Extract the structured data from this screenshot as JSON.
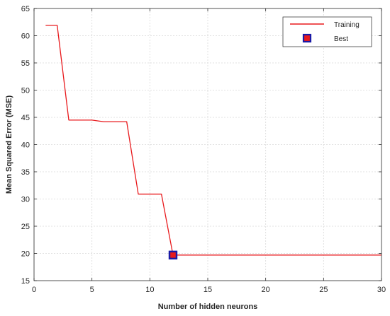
{
  "chart_data": {
    "type": "line",
    "title": "",
    "xlabel": "Number of hidden neurons",
    "ylabel": "Mean Squared Error (MSE)",
    "xlim": [
      0,
      30
    ],
    "ylim": [
      15,
      65
    ],
    "xticks": [
      0,
      5,
      10,
      15,
      20,
      25,
      30
    ],
    "yticks": [
      15,
      20,
      25,
      30,
      35,
      40,
      45,
      50,
      55,
      60,
      65
    ],
    "grid": true,
    "legend_position": "top-right",
    "series": [
      {
        "name": "Training",
        "color": "#e8191c",
        "x": [
          1,
          2,
          3,
          4,
          5,
          6,
          7,
          8,
          9,
          10,
          11,
          12,
          13,
          14,
          15,
          16,
          17,
          18,
          19,
          20,
          21,
          22,
          23,
          24,
          25,
          26,
          27,
          28,
          29,
          30
        ],
        "y": [
          61.9,
          61.9,
          44.5,
          44.5,
          44.5,
          44.2,
          44.2,
          44.2,
          30.9,
          30.9,
          30.9,
          19.7,
          19.7,
          19.7,
          19.7,
          19.7,
          19.7,
          19.7,
          19.7,
          19.7,
          19.7,
          19.7,
          19.7,
          19.7,
          19.7,
          19.7,
          19.7,
          19.7,
          19.7,
          19.7
        ]
      }
    ],
    "best": {
      "name": "Best",
      "x": 12,
      "y": 19.7,
      "fill_color": "#e8191c",
      "edge_color": "#1a1aa6"
    }
  }
}
